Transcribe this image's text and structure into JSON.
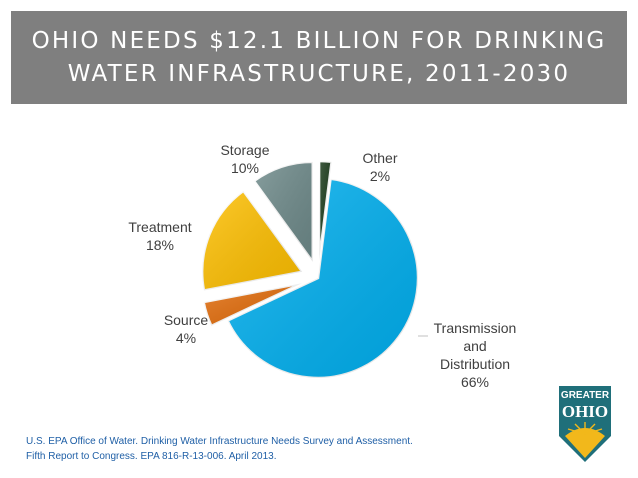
{
  "title": {
    "line1": "OHIO NEEDS $12.1 BILLION FOR DRINKING",
    "line2": "WATER INFRASTRUCTURE, 2011-2030"
  },
  "chart_data": {
    "type": "pie",
    "slices": [
      {
        "name": "Transmission and Distribution",
        "value": 66,
        "label_lines": [
          "Transmission",
          "and",
          "Distribution",
          "66%"
        ],
        "color": "#00b0f0"
      },
      {
        "name": "Source",
        "value": 4,
        "label_lines": [
          "Source",
          "4%"
        ],
        "color": "#e36c0a"
      },
      {
        "name": "Treatment",
        "value": 18,
        "label_lines": [
          "Treatment",
          "18%"
        ],
        "color": "#ffc000"
      },
      {
        "name": "Storage",
        "value": 10,
        "label_lines": [
          "Storage",
          "10%"
        ],
        "color": "#6e8a8a"
      },
      {
        "name": "Other",
        "value": 2,
        "label_lines": [
          "Other",
          "2%"
        ],
        "color": "#1a3a1a"
      }
    ],
    "exploded": true
  },
  "source_note": {
    "line1": "U.S. EPA Office of Water. Drinking Water Infrastructure Needs Survey and Assessment.",
    "line2": "Fifth Report to Congress. EPA 816-R-13-006. April 2013."
  },
  "logo": {
    "line1": "GREATER",
    "line2": "OHIO",
    "colors": {
      "teal": "#1f6f7a",
      "gold": "#f2b81b"
    }
  }
}
